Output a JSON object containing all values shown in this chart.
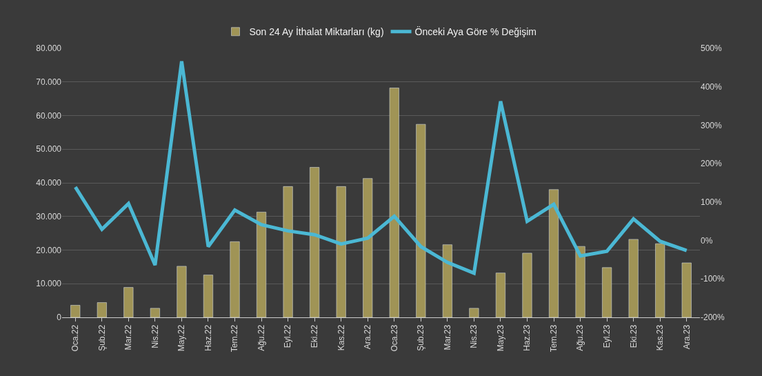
{
  "chart_data": {
    "type": "bar",
    "categories": [
      "Oca.22",
      "Şub.22",
      "Mar.22",
      "Nis.22",
      "May.22",
      "Haz.22",
      "Tem.22",
      "Ağu.22",
      "Eyl.22",
      "Eki.22",
      "Kas.22",
      "Ara.22",
      "Oca.23",
      "Şub.23",
      "Mar.23",
      "Nis.23",
      "May.23",
      "Haz.23",
      "Tem.23",
      "Ağu.23",
      "Eyl.23",
      "Eki.23",
      "Kas.23",
      "Ara.23"
    ],
    "series": [
      {
        "name": "Son 24 Ay İthalat Miktarları (kg)",
        "color": "#a09456",
        "values": [
          3600,
          4400,
          8900,
          2700,
          15200,
          12600,
          22500,
          31300,
          38900,
          44600,
          38900,
          41300,
          68200,
          57400,
          21600,
          2700,
          13200,
          19100,
          38000,
          21100,
          14800,
          23200,
          21900,
          16200
        ]
      },
      {
        "name": "Önceki Aya Göre % Değişim",
        "type": "line",
        "axis": "y2",
        "color": "#4bb8d4",
        "values": [
          139,
          29,
          96,
          -64,
          466,
          -16,
          79,
          41,
          25,
          15,
          -9,
          6,
          63,
          -16,
          -57,
          -85,
          362,
          50,
          94,
          -40,
          -28,
          56,
          -2,
          -26
        ]
      }
    ],
    "ylim": [
      0,
      80000
    ],
    "yticks": [
      0,
      {
        "value": 10000,
        "label": "10.000"
      },
      {
        "value": 20000,
        "label": "20.000"
      },
      {
        "value": 30000,
        "label": "30.000"
      },
      {
        "value": 40000,
        "label": "40.000"
      },
      {
        "value": 50000,
        "label": "50.000"
      },
      {
        "value": 60000,
        "label": "60.000"
      },
      {
        "value": 70000,
        "label": "70.000"
      },
      {
        "value": 80000,
        "label": "80.000"
      }
    ],
    "y2lim": [
      -200,
      500
    ],
    "y2ticks": [
      {
        "value": -200,
        "label": "-200%"
      },
      {
        "value": -100,
        "label": "-100%"
      },
      {
        "value": 0,
        "label": "0%"
      },
      {
        "value": 100,
        "label": "100%"
      },
      {
        "value": 200,
        "label": "200%"
      },
      {
        "value": 300,
        "label": "300%"
      },
      {
        "value": 400,
        "label": "400%"
      },
      {
        "value": 500,
        "label": "500%"
      }
    ],
    "grid": "y",
    "legend": "top",
    "marker": "none",
    "line_style": "solid"
  }
}
